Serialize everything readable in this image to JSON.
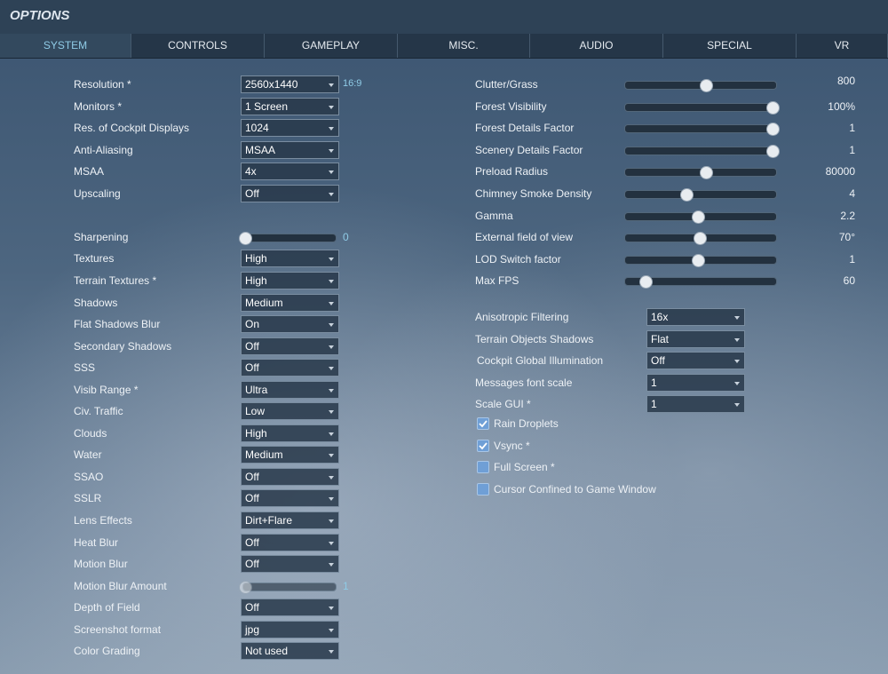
{
  "header": {
    "title": "OPTIONS"
  },
  "tabs": {
    "items": [
      "SYSTEM",
      "CONTROLS",
      "GAMEPLAY",
      "MISC.",
      "AUDIO",
      "SPECIAL",
      "VR"
    ],
    "active": 0
  },
  "left": {
    "rows": [
      {
        "label": "Resolution *",
        "control": "dropdown",
        "value": "2560x1440",
        "extra": "16:9"
      },
      {
        "label": "Monitors *",
        "control": "dropdown",
        "value": "1 Screen"
      },
      {
        "label": "Res. of Cockpit Displays",
        "control": "dropdown",
        "value": "1024"
      },
      {
        "label": "Anti-Aliasing",
        "control": "dropdown",
        "value": "MSAA"
      },
      {
        "label": "MSAA",
        "control": "dropdown",
        "value": "4x"
      },
      {
        "label": "Upscaling",
        "control": "dropdown",
        "value": "Off"
      },
      {
        "label": "Sharpening",
        "control": "slider",
        "value": "0"
      },
      {
        "label": "Textures",
        "control": "dropdown",
        "value": "High"
      },
      {
        "label": "Terrain Textures *",
        "control": "dropdown",
        "value": "High"
      },
      {
        "label": "Shadows",
        "control": "dropdown",
        "value": "Medium"
      },
      {
        "label": "Flat Shadows Blur",
        "control": "dropdown",
        "value": "On"
      },
      {
        "label": "Secondary Shadows",
        "control": "dropdown",
        "value": "Off"
      },
      {
        "label": "SSS",
        "control": "dropdown",
        "value": "Off"
      },
      {
        "label": "Visib Range *",
        "control": "dropdown",
        "value": "Ultra"
      },
      {
        "label": "Civ. Traffic",
        "control": "dropdown",
        "value": "Low"
      },
      {
        "label": "Clouds",
        "control": "dropdown",
        "value": "High"
      },
      {
        "label": "Water",
        "control": "dropdown",
        "value": "Medium"
      },
      {
        "label": "SSAO",
        "control": "dropdown",
        "value": "Off"
      },
      {
        "label": "SSLR",
        "control": "dropdown",
        "value": "Off"
      },
      {
        "label": "Lens Effects",
        "control": "dropdown",
        "value": "Dirt+Flare"
      },
      {
        "label": "Heat Blur",
        "control": "dropdown",
        "value": "Off"
      },
      {
        "label": "Motion Blur",
        "control": "dropdown",
        "value": "Off"
      },
      {
        "label": "Motion Blur Amount",
        "control": "slider",
        "value": "1"
      },
      {
        "label": "Depth of Field",
        "control": "dropdown",
        "value": "Off"
      },
      {
        "label": "Screenshot format",
        "control": "dropdown",
        "value": "jpg"
      },
      {
        "label": "Color Grading",
        "control": "dropdown",
        "value": "Not used"
      }
    ]
  },
  "right_sliders": {
    "rows": [
      {
        "label": "Clutter/Grass",
        "value": "800"
      },
      {
        "label": "Forest Visibility",
        "value": "100%"
      },
      {
        "label": "Forest Details Factor",
        "value": "1"
      },
      {
        "label": "Scenery Details Factor",
        "value": "1"
      },
      {
        "label": "Preload Radius",
        "value": "80000"
      },
      {
        "label": "Chimney Smoke Density",
        "value": "4"
      },
      {
        "label": "Gamma",
        "value": "2.2"
      },
      {
        "label": "External field of view",
        "value": "70°"
      },
      {
        "label": "LOD Switch factor",
        "value": "1"
      },
      {
        "label": "Max FPS",
        "value": "60"
      }
    ]
  },
  "right_dropdowns": {
    "rows": [
      {
        "label": "Anisotropic Filtering",
        "value": "16x"
      },
      {
        "label": "Terrain Objects Shadows",
        "value": "Flat"
      },
      {
        "label": "Cockpit Global Illumination",
        "value": "Off"
      },
      {
        "label": "Messages font scale",
        "value": "1"
      },
      {
        "label": "Scale GUI *",
        "value": "1"
      }
    ]
  },
  "checkboxes": {
    "items": [
      {
        "label": "Rain Droplets",
        "checked": true
      },
      {
        "label": "Vsync *",
        "checked": true
      },
      {
        "label": "Full Screen *",
        "checked": false
      },
      {
        "label": "Cursor Confined to Game Window",
        "checked": false
      }
    ]
  }
}
